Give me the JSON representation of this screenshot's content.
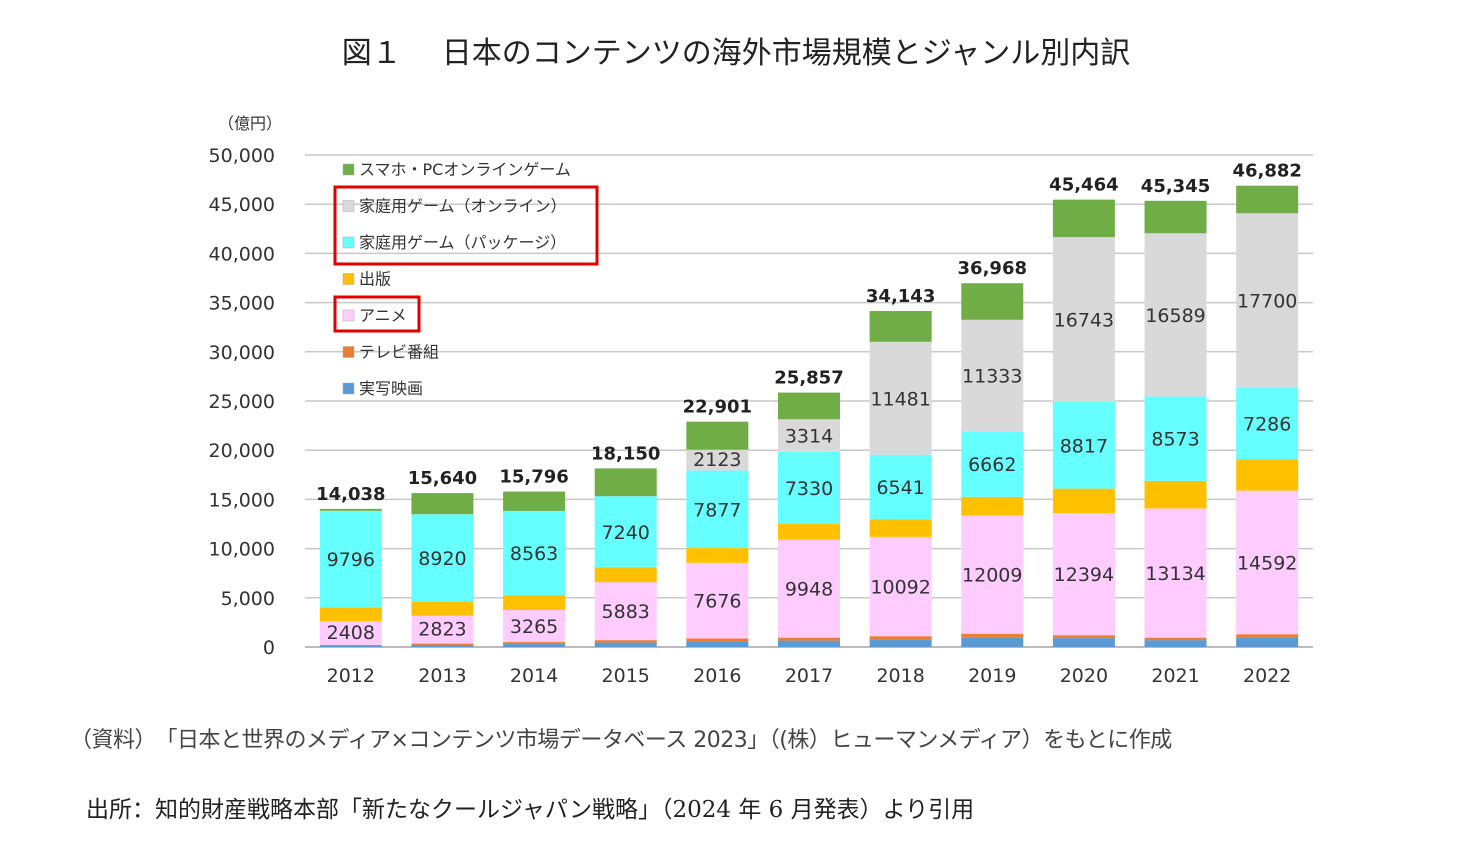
{
  "title": {
    "fig": "図１",
    "text": "日本のコンテンツの海外市場規模とジャンル別内訳"
  },
  "source_note": "（資料）　「日本と世界のメディア×コンテンツ市場データベース 2023」（(株）ヒューマンメディア）をもとに作成",
  "citation": "出所：知的財産戦略本部「新たなクールジャパン戦略」（2024 年 6 月発表）より引用",
  "chart_data": {
    "type": "bar",
    "stacked": true,
    "title": "日本のコンテンツの海外市場規模とジャンル別内訳",
    "ylabel": "（億円）",
    "ylim": [
      0,
      50000
    ],
    "yticks": [
      "0",
      "5,000",
      "10,000",
      "15,000",
      "20,000",
      "25,000",
      "30,000",
      "35,000",
      "40,000",
      "45,000",
      "50,000"
    ],
    "grid": true,
    "legend": "upper-left inside",
    "categories": [
      "2012",
      "2013",
      "2014",
      "2015",
      "2016",
      "2017",
      "2018",
      "2019",
      "2020",
      "2021",
      "2022"
    ],
    "totals": [
      "14,038",
      "15,640",
      "15,796",
      "18,150",
      "22,901",
      "25,857",
      "34,143",
      "36,968",
      "45,464",
      "45,345",
      "46,882"
    ],
    "series": [
      {
        "name": "実写映画",
        "color": "#5b9bd5",
        "labeled": false,
        "values": [
          100,
          200,
          300,
          450,
          600,
          650,
          800,
          1000,
          900,
          700,
          1000
        ]
      },
      {
        "name": "テレビ番組",
        "color": "#ed7d31",
        "labeled": false,
        "values": [
          100,
          150,
          200,
          250,
          275,
          300,
          300,
          350,
          300,
          250,
          300
        ]
      },
      {
        "name": "アニメ",
        "color": "#ffccff",
        "labeled": true,
        "values": [
          2408,
          2823,
          3265,
          5883,
          7676,
          9948,
          10092,
          12009,
          12394,
          13134,
          14592
        ]
      },
      {
        "name": "出版",
        "color": "#ffc000",
        "labeled": false,
        "values": [
          1434,
          1400,
          1500,
          1500,
          1500,
          1600,
          1800,
          1900,
          2500,
          2800,
          3200
        ]
      },
      {
        "name": "家庭用ゲーム（パッケージ）",
        "color": "#66ffff",
        "labeled": true,
        "values": [
          9796,
          8920,
          8563,
          7240,
          7877,
          7330,
          6541,
          6662,
          8817,
          8573,
          7286
        ]
      },
      {
        "name": "家庭用ゲーム（オンライン）",
        "color": "#d9d9d9",
        "labeled": true,
        "values": [
          0,
          0,
          0,
          0,
          2123,
          3314,
          11481,
          11333,
          16743,
          16589,
          17700
        ]
      },
      {
        "name": "スマホ・PCオンラインゲーム",
        "color": "#70ad47",
        "labeled": false,
        "values": [
          200,
          2147,
          1968,
          2827,
          2850,
          2715,
          3129,
          3714,
          3810,
          3299,
          2804
        ]
      }
    ],
    "highlighted_legend": [
      "家庭用ゲーム（オンライン）",
      "家庭用ゲーム（パッケージ）",
      "アニメ"
    ],
    "highlight_color": "#e00000"
  }
}
